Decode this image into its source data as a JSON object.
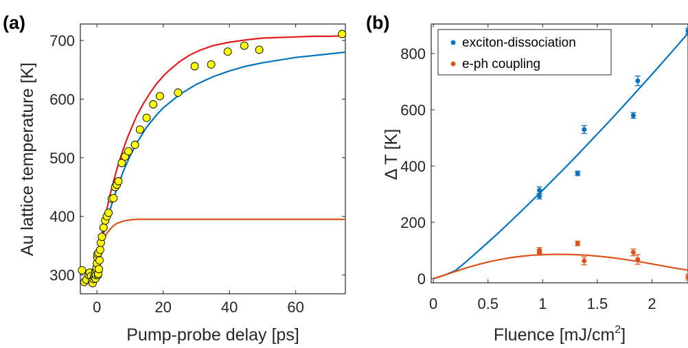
{
  "colors": {
    "axes": "#262626",
    "marker_fill": "#ffff00",
    "fit_red": "#e41a1c",
    "blue": "#0072bd",
    "orange": "#d95319"
  },
  "chart_data": [
    {
      "panel_label": "(a)",
      "type": "scatter",
      "xlabel": "Pump-probe delay [ps]",
      "ylabel": "Au lattice temperature [K]",
      "xlim": [
        -5,
        75
      ],
      "ylim": [
        268,
        728
      ],
      "xticks": [
        0,
        20,
        40,
        60
      ],
      "yticks": [
        300,
        400,
        500,
        600,
        700
      ],
      "grid": false,
      "legend": "none",
      "data_points": {
        "x": [
          -4.5,
          -3.8,
          -3.2,
          -2.5,
          -2.2,
          -1.8,
          -1.5,
          -1.3,
          -1.0,
          -0.8,
          -0.6,
          -0.5,
          -0.4,
          -0.3,
          -0.2,
          -0.1,
          0.0,
          0.1,
          0.2,
          0.3,
          0.4,
          0.5,
          0.6,
          0.8,
          1.0,
          1.2,
          1.5,
          2.0,
          2.5,
          3.0,
          3.5,
          4.5,
          5.0,
          5.5,
          6.0,
          6.5,
          7.5,
          8.5,
          9.5,
          11.5,
          13.0,
          15.0,
          17.0,
          19.0,
          24.5,
          29.5,
          34.5,
          39.5,
          44.5,
          49.0,
          74.0
        ],
        "y": [
          308,
          288,
          292,
          300,
          304,
          298,
          290,
          286,
          293,
          297,
          300,
          305,
          294,
          300,
          309,
          312,
          320,
          330,
          336,
          300,
          302,
          338,
          310,
          325,
          343,
          355,
          365,
          381,
          393,
          400,
          406,
          430,
          431,
          450,
          454,
          460,
          491,
          502,
          511,
          522,
          548,
          568,
          591,
          605,
          611,
          656,
          659,
          681,
          691,
          684,
          711
        ]
      },
      "series": [
        {
          "x": [
            0,
            0.5,
            1,
            1.5,
            2,
            2.5,
            3,
            4,
            5,
            6,
            7,
            8,
            9,
            10,
            12,
            14,
            16,
            18,
            20,
            22,
            25,
            28,
            31,
            35,
            40,
            45,
            50,
            55,
            60,
            65,
            70,
            75
          ],
          "y": [
            318,
            336,
            353,
            369,
            384,
            398,
            412,
            437,
            459,
            480,
            498,
            515,
            531,
            545,
            571,
            592,
            610,
            626,
            639,
            650,
            664,
            675,
            683,
            691,
            697,
            701,
            704,
            705,
            706,
            707,
            707,
            708
          ]
        },
        {
          "x": [
            0,
            1,
            2,
            3,
            4,
            5,
            6,
            8,
            10,
            12,
            15,
            18,
            20,
            25,
            30,
            35,
            40,
            45,
            50,
            60,
            70,
            75
          ],
          "y": [
            325,
            349,
            371,
            392,
            412,
            430,
            447,
            477,
            503,
            525,
            552,
            573,
            585,
            608,
            625,
            638,
            648,
            656,
            662,
            671,
            677,
            680
          ]
        },
        {
          "x": [
            0,
            0.5,
            1,
            1.5,
            2,
            2.5,
            3,
            4,
            5,
            6,
            7,
            8,
            9,
            10,
            12,
            15,
            20,
            30,
            40,
            50,
            60,
            75
          ],
          "y": [
            325,
            336,
            345,
            353,
            360,
            366,
            371,
            378,
            384,
            388,
            390,
            392,
            393,
            394,
            395,
            395,
            395,
            395,
            395,
            395,
            395,
            395
          ]
        }
      ]
    },
    {
      "panel_label": "(b)",
      "type": "scatter",
      "xlabel_main": "Fluence [mJ/cm",
      "xlabel_sup": "2",
      "xlabel_end": "]",
      "ylabel": "Δ T [K]",
      "xlim": [
        -0.02,
        2.33
      ],
      "ylim": [
        -15,
        905
      ],
      "xticks": [
        0,
        0.5,
        1,
        1.5,
        2
      ],
      "xtick_labels": [
        "0",
        "0.5",
        "1",
        "1.5",
        "2"
      ],
      "yticks": [
        0,
        200,
        400,
        600,
        800
      ],
      "grid": false,
      "legend": "top-left",
      "series": [
        {
          "name": "exciton-dissociation",
          "points": {
            "x": [
              0.97,
              0.97,
              1.32,
              1.38,
              1.83,
              1.87,
              2.33
            ],
            "y": [
              293,
              314,
              374,
              530,
              580,
              703,
              880
            ],
            "err": [
              10,
              12,
              8,
              14,
              10,
              17,
              10
            ]
          },
          "fit": {
            "x": [
              0,
              0.1,
              0.2,
              0.3,
              0.4,
              0.5,
              0.6,
              0.7,
              0.8,
              0.9,
              1.0,
              1.1,
              1.2,
              1.3,
              1.4,
              1.5,
              1.6,
              1.7,
              1.8,
              1.9,
              2.0,
              2.1,
              2.2,
              2.33
            ],
            "y": [
              0,
              12,
              28,
              60,
              94,
              129,
              164,
              201,
              238,
              276,
              314,
              353,
              392,
              432,
              473,
              514,
              555,
              597,
              640,
              683,
              726,
              770,
              814,
              872
            ]
          }
        },
        {
          "name": "e-ph coupling",
          "points": {
            "x": [
              0.97,
              0.97,
              1.32,
              1.38,
              1.83,
              1.87,
              2.33
            ],
            "y": [
              93,
              100,
              125,
              63,
              93,
              68,
              5
            ],
            "err": [
              10,
              10,
              8,
              14,
              12,
              17,
              10
            ]
          },
          "fit": {
            "x": [
              0,
              0.1,
              0.2,
              0.3,
              0.4,
              0.5,
              0.6,
              0.7,
              0.8,
              0.9,
              1.0,
              1.1,
              1.2,
              1.3,
              1.4,
              1.5,
              1.6,
              1.7,
              1.8,
              1.9,
              2.0,
              2.1,
              2.2,
              2.33
            ],
            "y": [
              0,
              12,
              25,
              38,
              49,
              59,
              67,
              74,
              79,
              83,
              85,
              86,
              86,
              85,
              83,
              80,
              76,
              71,
              65,
              59,
              52,
              45,
              38,
              30
            ]
          }
        }
      ]
    }
  ]
}
